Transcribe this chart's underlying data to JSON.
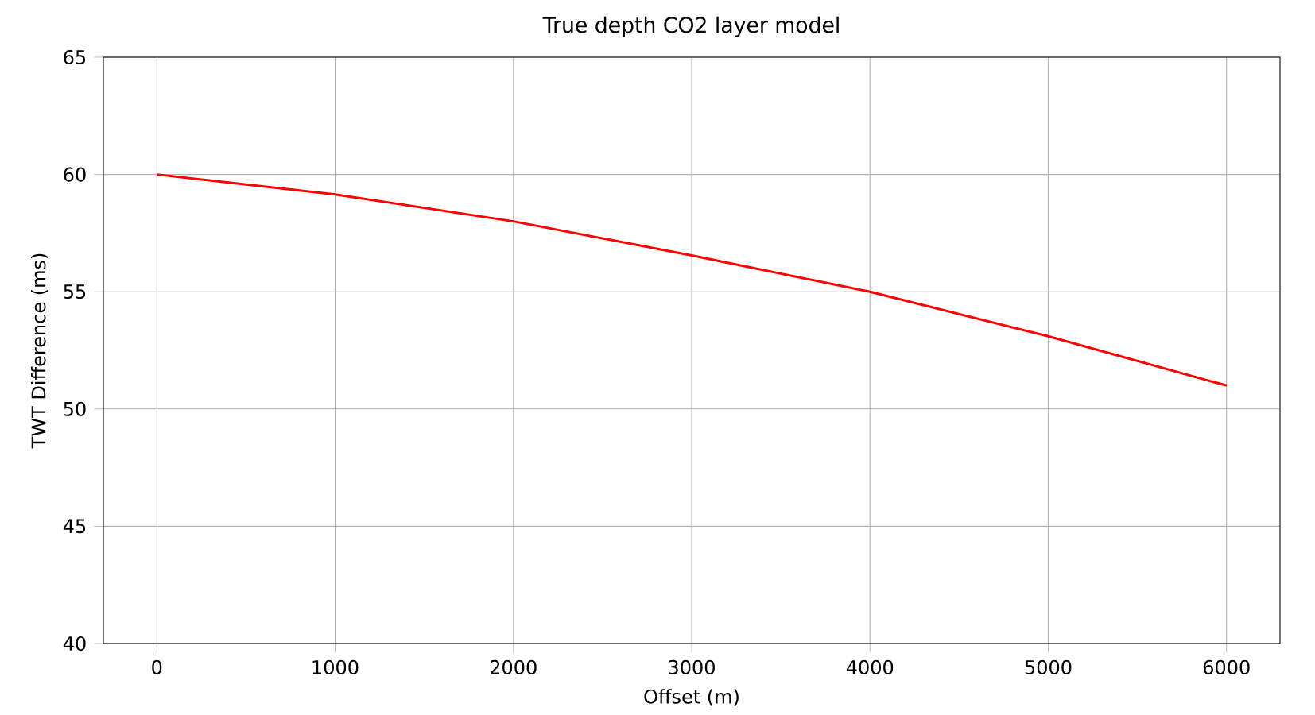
{
  "chart_data": {
    "type": "line",
    "title": "True depth CO2 layer model",
    "xlabel": "Offset (m)",
    "ylabel": "TWT Difference (ms)",
    "x": [
      0,
      1000,
      2000,
      3000,
      4000,
      5000,
      6000
    ],
    "series": [
      {
        "color": "#ff0000",
        "values": [
          60.0,
          59.15,
          58.0,
          56.55,
          55.0,
          53.1,
          51.0
        ]
      }
    ],
    "xlim": [
      -300,
      6300
    ],
    "ylim": [
      40,
      65
    ],
    "xticks": [
      0,
      1000,
      2000,
      3000,
      4000,
      5000,
      6000
    ],
    "yticks": [
      40,
      45,
      50,
      55,
      60,
      65
    ],
    "grid": true
  }
}
